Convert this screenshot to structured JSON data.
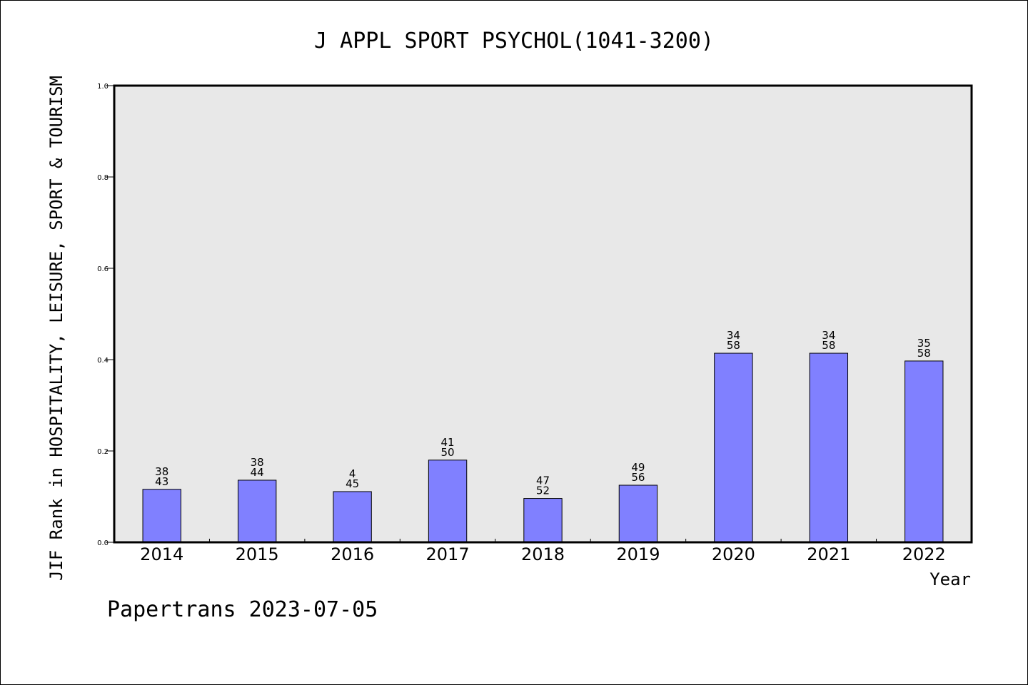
{
  "chart_data": {
    "type": "bar",
    "title": "J APPL SPORT PSYCHOL(1041-3200)",
    "xlabel": "Year",
    "ylabel": "JIF Rank in HOSPITALITY, LEISURE, SPORT & TOURISM",
    "footer": "Papertrans 2023-07-05",
    "ylim": [
      0,
      1
    ],
    "yticks": [
      "0.0",
      "0.2",
      "0.4",
      "0.6",
      "0.8",
      "1.0"
    ],
    "grid": false,
    "categories": [
      "2014",
      "2015",
      "2016",
      "2017",
      "2018",
      "2019",
      "2020",
      "2021",
      "2022"
    ],
    "values": [
      0.116,
      0.136,
      0.111,
      0.18,
      0.096,
      0.125,
      0.414,
      0.414,
      0.397
    ],
    "labels_top": [
      "38",
      "38",
      "4",
      "41",
      "47",
      "49",
      "34",
      "34",
      "35"
    ],
    "labels_bottom": [
      "43",
      "44",
      "45",
      "50",
      "52",
      "56",
      "58",
      "58",
      "58"
    ],
    "colors": {
      "bar": "#8080ff",
      "plot_bg": "#e8e8e8",
      "axis": "#000000"
    }
  }
}
